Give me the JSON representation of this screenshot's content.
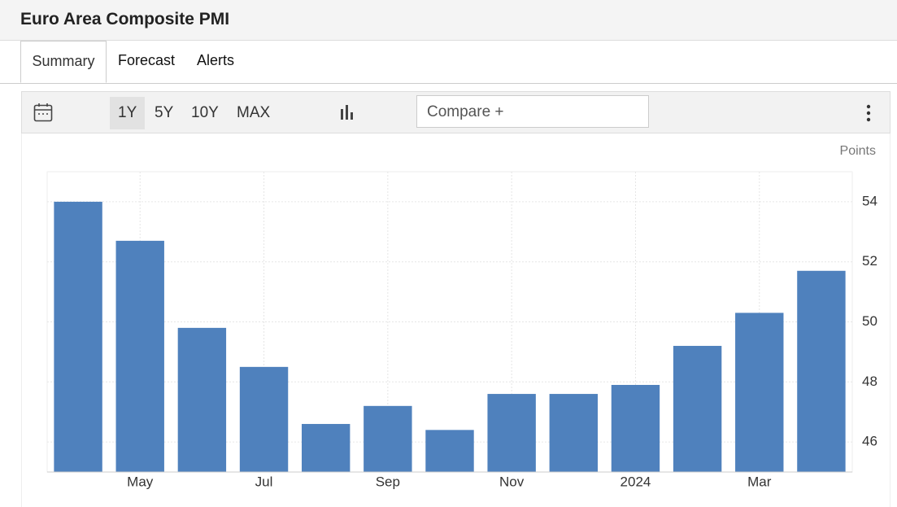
{
  "header": {
    "title": "Euro Area Composite PMI"
  },
  "tabs": [
    "Summary",
    "Forecast",
    "Alerts"
  ],
  "toolbar": {
    "ranges": [
      "1Y",
      "5Y",
      "10Y",
      "MAX"
    ],
    "compare": "Compare +"
  },
  "chart_data": {
    "type": "bar",
    "unit_label": "Points",
    "categories": [
      null,
      "May",
      null,
      "Jul",
      null,
      "Sep",
      null,
      "Nov",
      null,
      "2024",
      null,
      "Mar",
      null
    ],
    "values": [
      54.0,
      52.7,
      49.8,
      48.5,
      46.6,
      47.2,
      46.4,
      47.6,
      47.6,
      47.9,
      49.2,
      50.3,
      51.7
    ],
    "color": "#4f81bd",
    "ylim": [
      45,
      55
    ],
    "yticks": [
      46,
      48,
      50,
      52,
      54
    ],
    "grid": true
  }
}
